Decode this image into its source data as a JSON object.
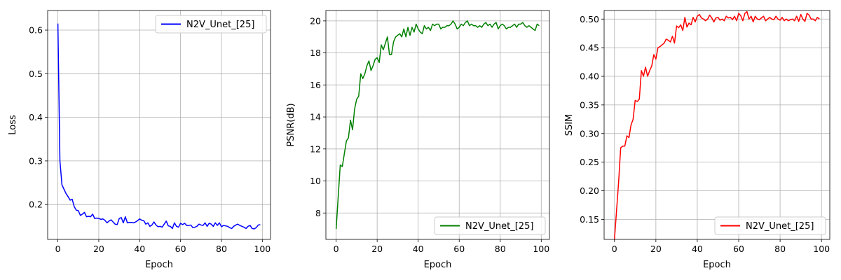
{
  "chart_data": [
    {
      "type": "line",
      "xlabel": "Epoch",
      "ylabel": "Loss",
      "xlim": [
        -5,
        104
      ],
      "ylim": [
        0.12,
        0.645
      ],
      "xticks": [
        0,
        20,
        40,
        60,
        80,
        100
      ],
      "yticks": [
        0.2,
        0.3,
        0.4,
        0.5,
        0.6
      ],
      "grid": true,
      "legend_loc": "upper right",
      "color": "#0000ff",
      "series": [
        {
          "name": "N2V_Unet_[25]",
          "values": [
            0.615,
            0.3,
            0.245,
            0.235,
            0.225,
            0.218,
            0.21,
            0.212,
            0.195,
            0.187,
            0.186,
            0.175,
            0.178,
            0.182,
            0.172,
            0.173,
            0.172,
            0.178,
            0.168,
            0.169,
            0.168,
            0.166,
            0.167,
            0.164,
            0.158,
            0.162,
            0.165,
            0.16,
            0.155,
            0.154,
            0.168,
            0.17,
            0.158,
            0.172,
            0.158,
            0.159,
            0.159,
            0.158,
            0.16,
            0.163,
            0.167,
            0.164,
            0.163,
            0.155,
            0.158,
            0.15,
            0.153,
            0.16,
            0.153,
            0.149,
            0.15,
            0.148,
            0.155,
            0.162,
            0.151,
            0.15,
            0.145,
            0.158,
            0.15,
            0.148,
            0.157,
            0.154,
            0.157,
            0.152,
            0.152,
            0.153,
            0.147,
            0.148,
            0.15,
            0.155,
            0.153,
            0.152,
            0.158,
            0.15,
            0.157,
            0.155,
            0.15,
            0.158,
            0.152,
            0.158,
            0.149,
            0.152,
            0.151,
            0.15,
            0.147,
            0.145,
            0.15,
            0.153,
            0.155,
            0.152,
            0.15,
            0.148,
            0.145,
            0.15,
            0.152,
            0.145,
            0.144,
            0.147,
            0.153,
            0.154
          ]
        }
      ]
    },
    {
      "type": "line",
      "xlabel": "Epoch",
      "ylabel": "PSNR(dB)",
      "xlim": [
        -5,
        104
      ],
      "ylim": [
        6.35,
        20.65
      ],
      "xticks": [
        0,
        20,
        40,
        60,
        80,
        100
      ],
      "yticks": [
        8,
        10,
        12,
        14,
        16,
        18,
        20
      ],
      "grid": true,
      "legend_loc": "lower right",
      "color": "#008000",
      "series": [
        {
          "name": "N2V_Unet_[25]",
          "values": [
            7.0,
            9.0,
            11.0,
            10.9,
            11.7,
            12.5,
            12.7,
            13.8,
            13.2,
            14.5,
            15.1,
            15.3,
            16.7,
            16.4,
            16.7,
            17.2,
            17.5,
            16.9,
            17.2,
            17.6,
            17.7,
            17.4,
            18.5,
            18.2,
            18.6,
            19.0,
            17.9,
            17.9,
            18.7,
            19.0,
            19.1,
            19.2,
            19.0,
            19.5,
            19.0,
            19.6,
            19.1,
            19.6,
            19.3,
            19.8,
            19.5,
            19.3,
            19.2,
            19.7,
            19.5,
            19.6,
            19.4,
            19.8,
            19.7,
            19.8,
            19.8,
            19.5,
            19.6,
            19.6,
            19.7,
            19.7,
            19.8,
            20.0,
            19.8,
            19.5,
            19.6,
            19.8,
            19.7,
            19.9,
            20.0,
            19.7,
            19.8,
            19.7,
            19.7,
            19.6,
            19.7,
            19.6,
            19.8,
            19.9,
            19.7,
            19.8,
            19.6,
            19.8,
            19.9,
            19.5,
            19.7,
            19.8,
            19.7,
            19.5,
            19.6,
            19.6,
            19.7,
            19.8,
            19.6,
            19.8,
            19.8,
            19.9,
            19.7,
            19.6,
            19.7,
            19.6,
            19.5,
            19.4,
            19.8,
            19.7
          ]
        }
      ]
    },
    {
      "type": "line",
      "xlabel": "Epoch",
      "ylabel": "SSIM",
      "xlim": [
        -5,
        104
      ],
      "ylim": [
        0.115,
        0.515
      ],
      "xticks": [
        0,
        20,
        40,
        60,
        80,
        100
      ],
      "yticks": [
        0.15,
        0.2,
        0.25,
        0.3,
        0.35,
        0.4,
        0.45,
        0.5
      ],
      "grid": true,
      "legend_loc": "lower right",
      "color": "#ff0000",
      "series": [
        {
          "name": "N2V_Unet_[25]",
          "values": [
            0.115,
            0.165,
            0.215,
            0.275,
            0.278,
            0.278,
            0.296,
            0.293,
            0.315,
            0.325,
            0.358,
            0.356,
            0.36,
            0.41,
            0.4,
            0.416,
            0.4,
            0.41,
            0.418,
            0.438,
            0.43,
            0.45,
            0.452,
            0.455,
            0.458,
            0.465,
            0.463,
            0.46,
            0.47,
            0.458,
            0.488,
            0.485,
            0.49,
            0.48,
            0.503,
            0.486,
            0.493,
            0.49,
            0.503,
            0.495,
            0.505,
            0.508,
            0.502,
            0.5,
            0.497,
            0.5,
            0.507,
            0.502,
            0.495,
            0.502,
            0.503,
            0.498,
            0.5,
            0.497,
            0.505,
            0.502,
            0.503,
            0.499,
            0.505,
            0.497,
            0.51,
            0.506,
            0.497,
            0.51,
            0.513,
            0.5,
            0.505,
            0.495,
            0.505,
            0.5,
            0.499,
            0.502,
            0.505,
            0.497,
            0.5,
            0.503,
            0.5,
            0.499,
            0.505,
            0.5,
            0.498,
            0.503,
            0.497,
            0.5,
            0.497,
            0.499,
            0.5,
            0.497,
            0.505,
            0.496,
            0.508,
            0.5,
            0.496,
            0.51,
            0.507,
            0.5,
            0.5,
            0.497,
            0.503,
            0.5
          ]
        }
      ]
    }
  ]
}
